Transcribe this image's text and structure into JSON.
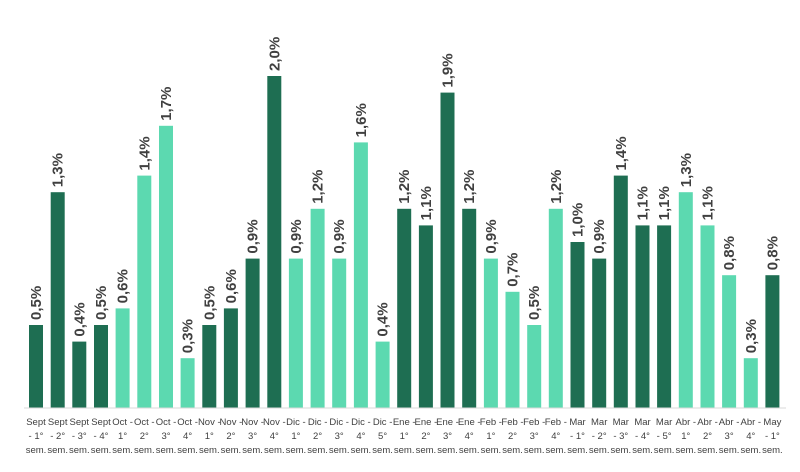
{
  "chart_data": {
    "type": "bar",
    "categories": [
      "Sept - 1° sem.",
      "Sept - 2° sem.",
      "Sept - 3° sem.",
      "Sept - 4° sem.",
      "Oct - 1° sem.",
      "Oct - 2° sem.",
      "Oct - 3° sem.",
      "Oct - 4° sem.",
      "Nov - 1° sem.",
      "Nov - 2° sem.",
      "Nov - 3° sem.",
      "Nov - 4° sem.",
      "Dic - 1° sem.",
      "Dic - 2° sem.",
      "Dic - 3° sem.",
      "Dic - 4° sem.",
      "Dic - 5° sem.",
      "Ene - 1° sem.",
      "Ene - 2° sem.",
      "Ene - 3° sem.",
      "Ene - 4° sem.",
      "Feb - 1° sem.",
      "Feb - 2° sem.",
      "Feb - 3° sem.",
      "Feb - 4° sem.",
      "Mar - 1° sem.",
      "Mar - 2° sem.",
      "Mar - 3° sem.",
      "Mar - 4° sem.",
      "Mar - 5° sem.",
      "Abr - 1° sem.",
      "Abr - 2° sem.",
      "Abr - 3° sem.",
      "Abr - 4° sem.",
      "May - 1° sem."
    ],
    "category_lines": [
      [
        "Sept",
        "- 1°",
        "sem."
      ],
      [
        "Sept",
        "- 2°",
        "sem."
      ],
      [
        "Sept",
        "- 3°",
        "sem."
      ],
      [
        "Sept",
        "- 4°",
        "sem."
      ],
      [
        "Oct -",
        "1°",
        "sem."
      ],
      [
        "Oct -",
        "2°",
        "sem."
      ],
      [
        "Oct -",
        "3°",
        "sem."
      ],
      [
        "Oct -",
        "4°",
        "sem."
      ],
      [
        "Nov -",
        "1°",
        "sem."
      ],
      [
        "Nov -",
        "2°",
        "sem."
      ],
      [
        "Nov -",
        "3°",
        "sem."
      ],
      [
        "Nov -",
        "4°",
        "sem."
      ],
      [
        "Dic -",
        "1°",
        "sem."
      ],
      [
        "Dic -",
        "2°",
        "sem."
      ],
      [
        "Dic -",
        "3°",
        "sem."
      ],
      [
        "Dic -",
        "4°",
        "sem."
      ],
      [
        "Dic -",
        "5°",
        "sem."
      ],
      [
        "Ene -",
        "1°",
        "sem."
      ],
      [
        "Ene -",
        "2°",
        "sem."
      ],
      [
        "Ene -",
        "3°",
        "sem."
      ],
      [
        "Ene -",
        "4°",
        "sem."
      ],
      [
        "Feb -",
        "1°",
        "sem."
      ],
      [
        "Feb -",
        "2°",
        "sem."
      ],
      [
        "Feb -",
        "3°",
        "sem."
      ],
      [
        "Feb -",
        "4°",
        "sem."
      ],
      [
        "Mar",
        "- 1°",
        "sem."
      ],
      [
        "Mar",
        "- 2°",
        "sem."
      ],
      [
        "Mar",
        "- 3°",
        "sem."
      ],
      [
        "Mar",
        "- 4°",
        "sem."
      ],
      [
        "Mar",
        "- 5°",
        "sem."
      ],
      [
        "Abr -",
        "1°",
        "sem."
      ],
      [
        "Abr -",
        "2°",
        "sem."
      ],
      [
        "Abr -",
        "3°",
        "sem."
      ],
      [
        "Abr -",
        "4°",
        "sem."
      ],
      [
        "May",
        "- 1°",
        "sem."
      ]
    ],
    "values": [
      0.5,
      1.3,
      0.4,
      0.5,
      0.6,
      1.4,
      1.7,
      0.3,
      0.5,
      0.6,
      0.9,
      2.0,
      0.9,
      1.2,
      0.9,
      1.6,
      0.4,
      1.2,
      1.1,
      1.9,
      1.2,
      0.9,
      0.7,
      0.5,
      1.2,
      1.0,
      0.9,
      1.4,
      1.1,
      1.1,
      1.3,
      1.1,
      0.8,
      0.3,
      0.8
    ],
    "value_labels": [
      "0,5%",
      "1,3%",
      "0,4%",
      "0,5%",
      "0,6%",
      "1,4%",
      "1,7%",
      "0,3%",
      "0,5%",
      "0,6%",
      "0,9%",
      "2,0%",
      "0,9%",
      "1,2%",
      "0,9%",
      "1,6%",
      "0,4%",
      "1,2%",
      "1,1%",
      "1,9%",
      "1,2%",
      "0,9%",
      "0,7%",
      "0,5%",
      "1,2%",
      "1,0%",
      "0,9%",
      "1,4%",
      "1,1%",
      "1,1%",
      "1,3%",
      "1,1%",
      "0,8%",
      "0,3%",
      "0,8%"
    ],
    "bar_colors": [
      "#1e6e52",
      "#1e6e52",
      "#1e6e52",
      "#1e6e52",
      "#5cd9b0",
      "#5cd9b0",
      "#5cd9b0",
      "#5cd9b0",
      "#1e6e52",
      "#1e6e52",
      "#1e6e52",
      "#1e6e52",
      "#5cd9b0",
      "#5cd9b0",
      "#5cd9b0",
      "#5cd9b0",
      "#5cd9b0",
      "#1e6e52",
      "#1e6e52",
      "#1e6e52",
      "#1e6e52",
      "#5cd9b0",
      "#5cd9b0",
      "#5cd9b0",
      "#5cd9b0",
      "#1e6e52",
      "#1e6e52",
      "#1e6e52",
      "#1e6e52",
      "#1e6e52",
      "#5cd9b0",
      "#5cd9b0",
      "#5cd9b0",
      "#5cd9b0",
      "#1e6e52"
    ],
    "ylim": [
      0,
      2.0
    ],
    "grid": false,
    "legend": "none",
    "title": "",
    "xlabel": "",
    "ylabel": ""
  }
}
